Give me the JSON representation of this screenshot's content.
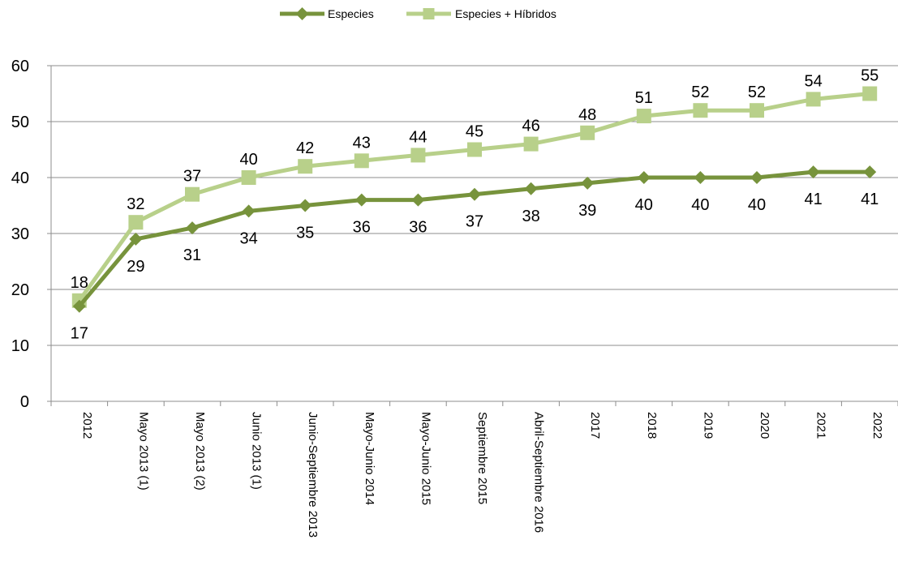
{
  "chart_data": {
    "type": "line",
    "categories": [
      "2012",
      "Mayo 2013 (1)",
      "Mayo 2013 (2)",
      "Junio 2013 (1)",
      "Junio-Septiembre 2013",
      "Mayo-Junio 2014",
      "Mayo-Junio 2015",
      "Septiembre 2015",
      "Abril-Septiembre 2016",
      "2017",
      "2018",
      "2019",
      "2020",
      "2021",
      "2022"
    ],
    "series": [
      {
        "name": "Especies",
        "values": [
          17,
          29,
          31,
          34,
          35,
          36,
          36,
          37,
          38,
          39,
          40,
          40,
          40,
          41,
          41
        ],
        "color": "#77933C",
        "marker": "diamond",
        "label_position": "below"
      },
      {
        "name": "Especies + Híbridos",
        "values": [
          18,
          32,
          37,
          40,
          42,
          43,
          44,
          45,
          46,
          48,
          51,
          52,
          52,
          54,
          55
        ],
        "color": "#B8D08A",
        "marker": "square",
        "label_position": "above"
      }
    ],
    "ylim": [
      0,
      60
    ],
    "yticks": [
      0,
      10,
      20,
      30,
      40,
      50,
      60
    ],
    "grid": true,
    "legend": "top-center",
    "title": "",
    "xlabel": "",
    "ylabel": ""
  }
}
